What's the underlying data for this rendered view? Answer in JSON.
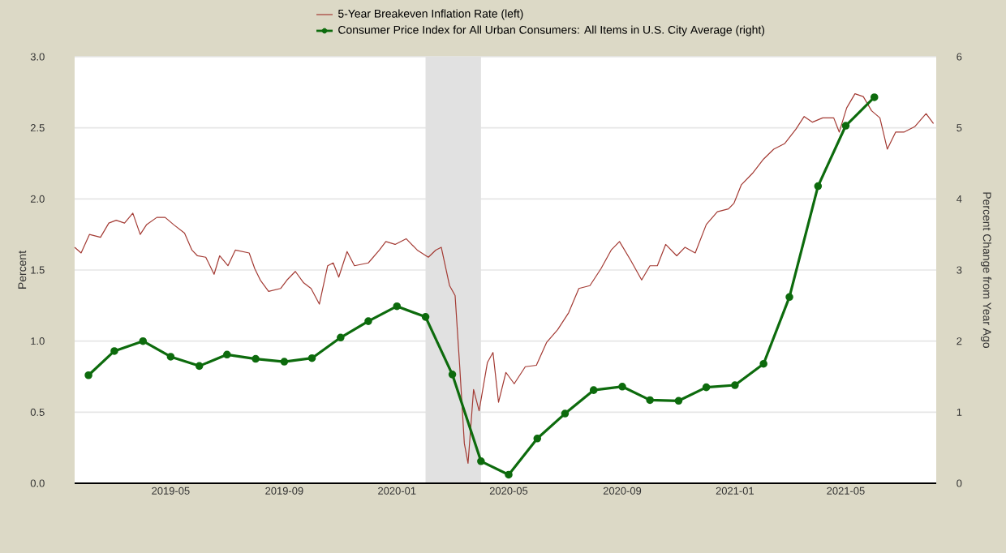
{
  "chart_data": {
    "type": "line",
    "ylabel": "Percent",
    "y2label": "Percent Change from Year Ago",
    "xlim": [
      "2019-01-17",
      "2021-08-07"
    ],
    "xticks": [
      "2019-05",
      "2019-09",
      "2020-01",
      "2020-05",
      "2020-09",
      "2021-01",
      "2021-05"
    ],
    "ylim": [
      0,
      3
    ],
    "yticks": [
      {
        "value": 0,
        "label": "0.0"
      },
      {
        "value": 0.5,
        "label": "0.5"
      },
      {
        "value": 1,
        "label": "1.0"
      },
      {
        "value": 1.5,
        "label": "1.5"
      },
      {
        "value": 2,
        "label": "2.0"
      },
      {
        "value": 2.5,
        "label": "2.5"
      },
      {
        "value": 3,
        "label": "3.0"
      }
    ],
    "y2lim": [
      0,
      6
    ],
    "y2ticks": [
      0,
      1,
      2,
      3,
      4,
      5,
      6
    ],
    "grid": "y",
    "legend": "top",
    "bands": [
      {
        "axis": "x",
        "from": "2020-02-01",
        "to": "2020-04-01",
        "color": "#e1e1e1"
      }
    ],
    "series": [
      {
        "name": "5-Year Breakeven Inflation Rate (left)",
        "color": "#a33a33",
        "marker": "none",
        "axis": "y",
        "x": [
          "2019-01-17",
          "2019-01-24",
          "2019-02-02",
          "2019-02-14",
          "2019-02-23",
          "2019-03-03",
          "2019-03-12",
          "2019-03-21",
          "2019-03-29",
          "2019-04-05",
          "2019-04-16",
          "2019-04-25",
          "2019-05-04",
          "2019-05-16",
          "2019-05-24",
          "2019-05-30",
          "2019-06-08",
          "2019-06-17",
          "2019-06-23",
          "2019-07-02",
          "2019-07-10",
          "2019-07-25",
          "2019-07-31",
          "2019-08-06",
          "2019-08-15",
          "2019-08-28",
          "2019-09-04",
          "2019-09-13",
          "2019-09-22",
          "2019-09-30",
          "2019-10-09",
          "2019-10-18",
          "2019-10-24",
          "2019-10-30",
          "2019-11-08",
          "2019-11-16",
          "2019-12-01",
          "2019-12-13",
          "2019-12-20",
          "2019-12-30",
          "2020-01-11",
          "2020-01-23",
          "2020-02-04",
          "2020-02-12",
          "2020-02-18",
          "2020-02-27",
          "2020-03-04",
          "2020-03-09",
          "2020-03-14",
          "2020-03-18",
          "2020-03-24",
          "2020-03-30",
          "2020-04-08",
          "2020-04-14",
          "2020-04-20",
          "2020-04-28",
          "2020-05-07",
          "2020-05-19",
          "2020-05-31",
          "2020-06-11",
          "2020-06-23",
          "2020-07-05",
          "2020-07-16",
          "2020-07-28",
          "2020-08-09",
          "2020-08-20",
          "2020-08-29",
          "2020-09-10",
          "2020-09-22",
          "2020-10-01",
          "2020-10-09",
          "2020-10-18",
          "2020-10-30",
          "2020-11-08",
          "2020-11-19",
          "2020-12-01",
          "2020-12-13",
          "2020-12-25",
          "2020-12-31",
          "2021-01-08",
          "2021-01-20",
          "2021-02-01",
          "2021-02-12",
          "2021-02-24",
          "2021-03-08",
          "2021-03-17",
          "2021-03-26",
          "2021-04-06",
          "2021-04-18",
          "2021-04-24",
          "2021-05-02",
          "2021-05-11",
          "2021-05-20",
          "2021-05-29",
          "2021-06-07",
          "2021-06-15",
          "2021-06-24",
          "2021-07-03",
          "2021-07-15",
          "2021-07-27",
          "2021-08-04"
        ],
        "values": [
          1.66,
          1.62,
          1.75,
          1.73,
          1.83,
          1.85,
          1.83,
          1.9,
          1.75,
          1.82,
          1.87,
          1.87,
          1.82,
          1.76,
          1.64,
          1.6,
          1.59,
          1.47,
          1.6,
          1.53,
          1.64,
          1.62,
          1.51,
          1.43,
          1.35,
          1.37,
          1.43,
          1.49,
          1.41,
          1.37,
          1.26,
          1.53,
          1.55,
          1.45,
          1.63,
          1.53,
          1.55,
          1.64,
          1.7,
          1.68,
          1.72,
          1.64,
          1.59,
          1.64,
          1.66,
          1.39,
          1.32,
          0.82,
          0.28,
          0.14,
          0.66,
          0.51,
          0.85,
          0.92,
          0.57,
          0.78,
          0.7,
          0.82,
          0.83,
          0.99,
          1.08,
          1.2,
          1.37,
          1.39,
          1.51,
          1.64,
          1.7,
          1.57,
          1.43,
          1.53,
          1.53,
          1.68,
          1.6,
          1.66,
          1.62,
          1.82,
          1.91,
          1.93,
          1.97,
          2.1,
          2.18,
          2.28,
          2.35,
          2.39,
          2.49,
          2.58,
          2.54,
          2.57,
          2.57,
          2.47,
          2.64,
          2.74,
          2.72,
          2.62,
          2.57,
          2.35,
          2.47,
          2.47,
          2.51,
          2.6,
          2.53
        ]
      },
      {
        "name": "Consumer Price Index for All Urban Consumers: All Items in U.S. City Average (right)",
        "color": "#0d6b0d",
        "marker": "circle",
        "axis": "y2",
        "x": [
          "2019-02",
          "2019-03",
          "2019-04",
          "2019-05",
          "2019-06",
          "2019-07",
          "2019-08",
          "2019-09",
          "2019-10",
          "2019-11",
          "2019-12",
          "2020-01",
          "2020-02",
          "2020-03",
          "2020-04",
          "2020-05",
          "2020-06",
          "2020-07",
          "2020-08",
          "2020-09",
          "2020-10",
          "2020-11",
          "2020-12",
          "2021-01",
          "2021-02",
          "2021-03",
          "2021-04",
          "2021-05",
          "2021-06"
        ],
        "values": [
          1.52,
          1.86,
          2.0,
          1.78,
          1.65,
          1.81,
          1.75,
          1.71,
          1.76,
          2.05,
          2.28,
          2.49,
          2.34,
          1.53,
          0.31,
          0.12,
          0.63,
          0.98,
          1.31,
          1.36,
          1.17,
          1.16,
          1.35,
          1.38,
          1.68,
          2.62,
          4.18,
          5.03,
          5.43
        ]
      }
    ]
  }
}
